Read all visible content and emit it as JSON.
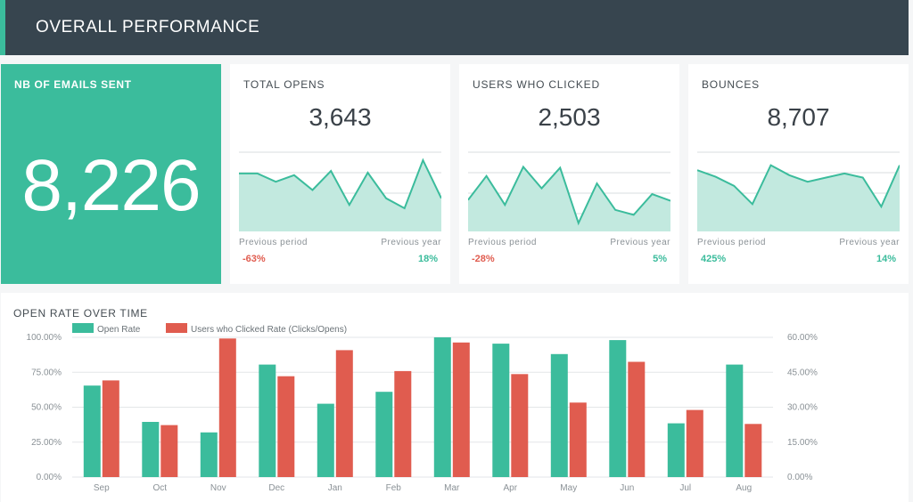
{
  "header": {
    "title": "OVERALL PERFORMANCE"
  },
  "colors": {
    "teal": "#3bbc9c",
    "red": "#e05c4f",
    "header_bg": "#37454f",
    "green_text": "#3bbc9c",
    "red_text": "#e05c4f"
  },
  "kpis": {
    "emails_sent": {
      "label": "NB OF EMAILS SENT",
      "value": "8,226"
    },
    "total_opens": {
      "label": "TOTAL OPENS",
      "value": "3,643",
      "previous_period_label": "Previous period",
      "previous_period_value": "-63%",
      "previous_year_label": "Previous year",
      "previous_year_value": "18%",
      "sparkline": [
        70,
        70,
        60,
        68,
        50,
        73,
        32,
        71,
        40,
        28,
        86,
        40
      ]
    },
    "users_clicked": {
      "label": "USERS WHO CLICKED",
      "value": "2,503",
      "previous_period_label": "Previous period",
      "previous_period_value": "-28%",
      "previous_year_label": "Previous year",
      "previous_year_value": "5%",
      "sparkline": [
        38,
        67,
        32,
        78,
        52,
        77,
        10,
        58,
        26,
        20,
        45,
        37
      ]
    },
    "bounces": {
      "label": "BOUNCES",
      "value": "8,707",
      "previous_period_label": "Previous period",
      "previous_period_value": "425%",
      "previous_year_label": "Previous year",
      "previous_year_value": "14%",
      "sparkline": [
        74,
        66,
        55,
        33,
        80,
        68,
        60,
        65,
        70,
        65,
        30,
        80
      ]
    }
  },
  "chart_data": {
    "type": "bar",
    "title": "OPEN RATE OVER TIME",
    "categories": [
      "Sep",
      "Oct",
      "Nov",
      "Dec",
      "Jan",
      "Feb",
      "Mar",
      "Apr",
      "May",
      "Jun",
      "Jul",
      "Aug"
    ],
    "series": [
      {
        "name": "Open Rate",
        "axis": "left",
        "color": "#3bbc9c",
        "values": [
          65.5,
          39.5,
          32,
          80.5,
          52.5,
          61,
          100,
          95.5,
          88,
          98,
          38.5,
          80.5
        ]
      },
      {
        "name": "Users who Clicked Rate (Clicks/Opens)",
        "axis": "right",
        "color": "#e05c4f",
        "values": [
          41.5,
          22.3,
          59.5,
          43.3,
          54.5,
          45.5,
          57.8,
          44.2,
          32,
          49.5,
          28.8,
          22.8
        ]
      }
    ],
    "left_axis": {
      "ylim": [
        0,
        100
      ],
      "ticks": [
        "0.00%",
        "25.00%",
        "50.00%",
        "75.00%",
        "100.00%"
      ]
    },
    "right_axis": {
      "ylim": [
        0,
        60
      ],
      "ticks": [
        "0.00%",
        "15.00%",
        "30.00%",
        "45.00%",
        "60.00%"
      ]
    },
    "legend_position": "top-left",
    "grid": true
  }
}
